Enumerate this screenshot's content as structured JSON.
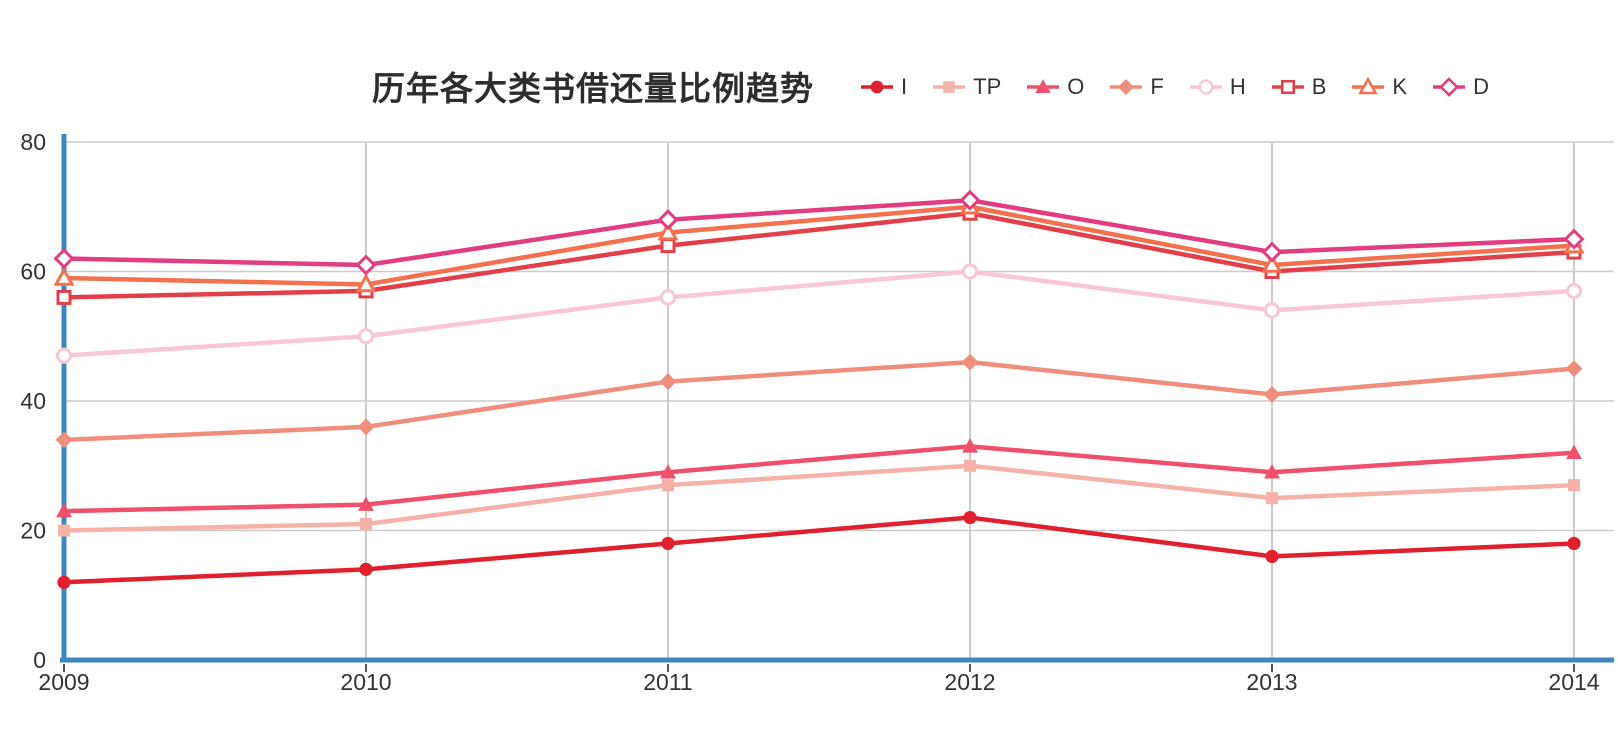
{
  "title": "历年各大类书借还量比例趋势",
  "chart_data": {
    "type": "line",
    "title": "历年各大类书借还量比例趋势",
    "categories": [
      "2009",
      "2010",
      "2011",
      "2012",
      "2013",
      "2014"
    ],
    "yticks": [
      0,
      20,
      40,
      60,
      80
    ],
    "ylim": [
      0,
      80
    ],
    "grid": true,
    "legend_position": "top-right",
    "axis_color": "#3e86c0",
    "grid_color": "#cccccc",
    "tick_color": "#555555",
    "text_color": "#333333",
    "series": [
      {
        "name": "I",
        "marker": "circle",
        "style": "solid",
        "color": "#e0202e",
        "values": [
          12,
          14,
          18,
          22,
          16,
          18
        ]
      },
      {
        "name": "TP",
        "marker": "square",
        "style": "solid",
        "color": "#f5b2a9",
        "values": [
          20,
          21,
          27,
          30,
          25,
          27
        ]
      },
      {
        "name": "O",
        "marker": "triangle",
        "style": "solid",
        "color": "#f0506b",
        "values": [
          23,
          24,
          29,
          33,
          29,
          32
        ]
      },
      {
        "name": "F",
        "marker": "diamond",
        "style": "solid",
        "color": "#ef8e7d",
        "values": [
          34,
          36,
          43,
          46,
          41,
          45
        ]
      },
      {
        "name": "H",
        "marker": "circle",
        "style": "open",
        "color": "#f9c7da",
        "values": [
          47,
          50,
          56,
          60,
          54,
          57
        ]
      },
      {
        "name": "B",
        "marker": "square",
        "style": "open",
        "color": "#e33f4b",
        "values": [
          56,
          57,
          64,
          69,
          60,
          63
        ]
      },
      {
        "name": "K",
        "marker": "triangle",
        "style": "open",
        "color": "#f3714e",
        "values": [
          59,
          58,
          66,
          70,
          61,
          64
        ]
      },
      {
        "name": "D",
        "marker": "diamond",
        "style": "open",
        "color": "#e23d80",
        "values": [
          62,
          61,
          68,
          71,
          63,
          65
        ]
      }
    ]
  }
}
